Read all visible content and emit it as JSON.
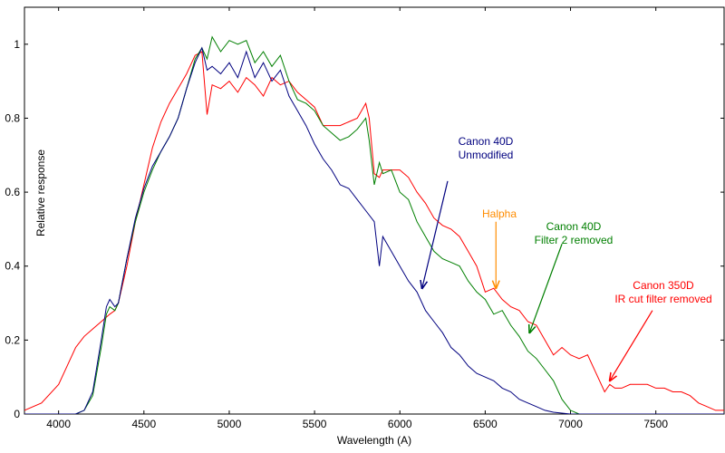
{
  "chart_data": {
    "type": "line",
    "title": "",
    "xlabel": "Wavelength (A)",
    "ylabel": "Relative response",
    "xlim": [
      3800,
      7900
    ],
    "ylim": [
      0,
      1.1
    ],
    "xticks": [
      4000,
      4500,
      5000,
      5500,
      6000,
      6500,
      7000,
      7500
    ],
    "yticks": [
      0,
      0.2,
      0.4,
      0.6,
      0.8,
      1
    ],
    "xtick_labels": [
      "4000",
      "4500",
      "5000",
      "5500",
      "6000",
      "6500",
      "7000",
      "7500"
    ],
    "ytick_labels": [
      "0",
      "0.2",
      "0.4",
      "0.6",
      "0.8",
      "1"
    ],
    "grid": false,
    "series": [
      {
        "name": "Canon 350D IR cut filter removed",
        "color": "#ff0000",
        "x": [
          3800,
          3900,
          4000,
          4050,
          4100,
          4150,
          4200,
          4250,
          4300,
          4330,
          4350,
          4400,
          4450,
          4500,
          4550,
          4600,
          4650,
          4700,
          4750,
          4800,
          4840,
          4870,
          4900,
          4950,
          5000,
          5050,
          5100,
          5150,
          5200,
          5250,
          5300,
          5350,
          5400,
          5450,
          5500,
          5550,
          5600,
          5650,
          5700,
          5750,
          5800,
          5820,
          5850,
          5880,
          5900,
          5950,
          6000,
          6050,
          6100,
          6150,
          6200,
          6250,
          6300,
          6350,
          6400,
          6450,
          6500,
          6550,
          6600,
          6650,
          6700,
          6750,
          6800,
          6850,
          6900,
          6950,
          7000,
          7050,
          7100,
          7150,
          7200,
          7230,
          7260,
          7300,
          7350,
          7400,
          7450,
          7500,
          7550,
          7600,
          7650,
          7700,
          7750,
          7800,
          7850,
          7900
        ],
        "y": [
          0.01,
          0.03,
          0.08,
          0.13,
          0.18,
          0.21,
          0.23,
          0.25,
          0.27,
          0.28,
          0.3,
          0.4,
          0.52,
          0.62,
          0.72,
          0.79,
          0.84,
          0.88,
          0.92,
          0.97,
          0.98,
          0.81,
          0.89,
          0.88,
          0.9,
          0.87,
          0.91,
          0.89,
          0.86,
          0.91,
          0.89,
          0.9,
          0.87,
          0.85,
          0.83,
          0.78,
          0.78,
          0.78,
          0.79,
          0.8,
          0.84,
          0.8,
          0.65,
          0.64,
          0.66,
          0.66,
          0.66,
          0.64,
          0.6,
          0.57,
          0.53,
          0.51,
          0.5,
          0.48,
          0.44,
          0.4,
          0.33,
          0.34,
          0.31,
          0.29,
          0.28,
          0.25,
          0.24,
          0.2,
          0.16,
          0.18,
          0.16,
          0.15,
          0.16,
          0.11,
          0.06,
          0.08,
          0.07,
          0.07,
          0.08,
          0.08,
          0.08,
          0.07,
          0.07,
          0.06,
          0.06,
          0.05,
          0.03,
          0.02,
          0.01,
          0.01
        ]
      },
      {
        "name": "Canon 40D Filter 2 removed",
        "color": "#007f00",
        "x": [
          3800,
          3900,
          4000,
          4100,
          4150,
          4200,
          4250,
          4280,
          4300,
          4330,
          4350,
          4400,
          4450,
          4500,
          4550,
          4600,
          4650,
          4700,
          4750,
          4800,
          4840,
          4870,
          4900,
          4950,
          5000,
          5050,
          5100,
          5150,
          5200,
          5250,
          5300,
          5350,
          5400,
          5450,
          5500,
          5550,
          5600,
          5650,
          5700,
          5750,
          5800,
          5820,
          5850,
          5880,
          5900,
          5950,
          6000,
          6050,
          6100,
          6150,
          6200,
          6250,
          6300,
          6350,
          6400,
          6450,
          6500,
          6550,
          6600,
          6650,
          6700,
          6750,
          6800,
          6850,
          6900,
          6950,
          7000,
          7050,
          7100,
          7200,
          7300,
          7400,
          7500,
          7600,
          7700,
          7800,
          7900
        ],
        "y": [
          0,
          0,
          0,
          0,
          0.01,
          0.05,
          0.18,
          0.27,
          0.29,
          0.28,
          0.3,
          0.42,
          0.52,
          0.6,
          0.66,
          0.71,
          0.75,
          0.8,
          0.88,
          0.96,
          0.99,
          0.96,
          1.02,
          0.98,
          1.01,
          1.0,
          1.01,
          0.95,
          0.98,
          0.94,
          0.97,
          0.9,
          0.85,
          0.84,
          0.82,
          0.78,
          0.76,
          0.74,
          0.75,
          0.77,
          0.8,
          0.74,
          0.62,
          0.68,
          0.65,
          0.66,
          0.6,
          0.58,
          0.52,
          0.48,
          0.44,
          0.42,
          0.41,
          0.4,
          0.36,
          0.33,
          0.31,
          0.27,
          0.28,
          0.24,
          0.21,
          0.17,
          0.15,
          0.12,
          0.09,
          0.04,
          0.01,
          0,
          0,
          0,
          0,
          0,
          0,
          0,
          0,
          0,
          0
        ]
      },
      {
        "name": "Canon 40D Unmodified",
        "color": "#00007f",
        "x": [
          3800,
          3900,
          4000,
          4100,
          4150,
          4200,
          4250,
          4280,
          4300,
          4330,
          4350,
          4400,
          4450,
          4500,
          4550,
          4600,
          4650,
          4700,
          4750,
          4800,
          4840,
          4870,
          4900,
          4950,
          5000,
          5050,
          5100,
          5150,
          5200,
          5250,
          5300,
          5350,
          5400,
          5450,
          5500,
          5550,
          5600,
          5650,
          5700,
          5750,
          5800,
          5850,
          5880,
          5900,
          5950,
          6000,
          6050,
          6100,
          6150,
          6200,
          6250,
          6300,
          6350,
          6400,
          6450,
          6500,
          6550,
          6600,
          6650,
          6700,
          6750,
          6800,
          6850,
          6900,
          7000,
          7100,
          7200,
          7300,
          7500,
          7700,
          7900
        ],
        "y": [
          0,
          0,
          0,
          0,
          0.01,
          0.06,
          0.2,
          0.29,
          0.31,
          0.29,
          0.3,
          0.42,
          0.53,
          0.61,
          0.67,
          0.71,
          0.75,
          0.8,
          0.88,
          0.95,
          0.99,
          0.93,
          0.94,
          0.92,
          0.95,
          0.91,
          0.98,
          0.91,
          0.95,
          0.9,
          0.93,
          0.86,
          0.82,
          0.78,
          0.73,
          0.69,
          0.66,
          0.62,
          0.61,
          0.58,
          0.55,
          0.52,
          0.4,
          0.48,
          0.44,
          0.4,
          0.36,
          0.33,
          0.28,
          0.25,
          0.22,
          0.18,
          0.16,
          0.13,
          0.11,
          0.1,
          0.09,
          0.07,
          0.06,
          0.04,
          0.03,
          0.02,
          0.01,
          0.005,
          0,
          0,
          0,
          0,
          0,
          0,
          0
        ]
      }
    ],
    "annotations": [
      {
        "id": "canon40d-unmod",
        "lines": [
          "Canon 40D",
          "Unmodified"
        ],
        "color": "#00007f",
        "arrow_to": [
          6130,
          0.34
        ],
        "arrow_from": [
          6280,
          0.63
        ]
      },
      {
        "id": "halpha",
        "lines": [
          "Halpha"
        ],
        "color": "#ff8c00",
        "arrow_to": [
          6563,
          0.34
        ],
        "arrow_from": [
          6563,
          0.52
        ]
      },
      {
        "id": "canon40d-filter2",
        "lines": [
          "Canon 40D",
          "Filter 2 removed"
        ],
        "color": "#007f00",
        "arrow_to": [
          6760,
          0.22
        ],
        "arrow_from": [
          6950,
          0.46
        ]
      },
      {
        "id": "canon350d",
        "lines": [
          "Canon 350D",
          "IR cut filter removed"
        ],
        "color": "#ff0000",
        "arrow_to": [
          7230,
          0.09
        ],
        "arrow_from": [
          7480,
          0.28
        ]
      }
    ]
  }
}
